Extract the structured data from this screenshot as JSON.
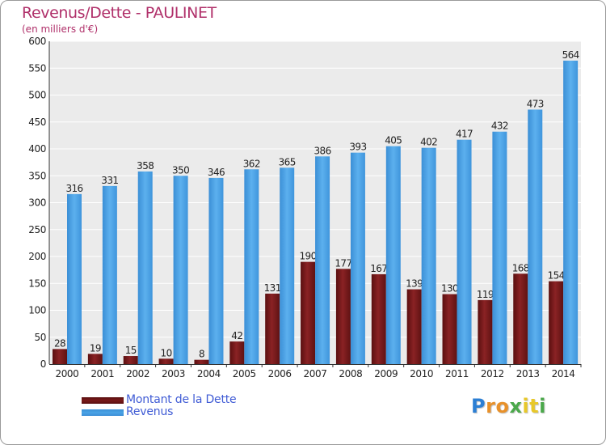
{
  "chart_data": {
    "type": "bar",
    "title": "Revenus/Dette - PAULINET",
    "subtitle": "(en milliers d'€)",
    "xlabel": "",
    "ylabel": "",
    "ylim": [
      0,
      600
    ],
    "y_ticks": [
      "0",
      "50",
      "100",
      "150",
      "200",
      "250",
      "300",
      "350",
      "400",
      "450",
      "500",
      "550",
      "600"
    ],
    "grid": true,
    "categories": [
      "2000",
      "2001",
      "2002",
      "2003",
      "2004",
      "2005",
      "2006",
      "2007",
      "2008",
      "2009",
      "2010",
      "2011",
      "2012",
      "2013",
      "2014"
    ],
    "series": [
      {
        "name": "Montant de la Dette",
        "color": "#7a1a1a",
        "values": [
          28,
          19,
          15,
          10,
          8,
          42,
          131,
          190,
          177,
          167,
          139,
          130,
          119,
          168,
          154
        ]
      },
      {
        "name": "Revenus",
        "color": "#4aa3e6",
        "values": [
          316,
          331,
          358,
          350,
          346,
          362,
          365,
          386,
          393,
          405,
          402,
          417,
          432,
          473,
          564
        ]
      }
    ],
    "legend": {
      "position": "bottom-left",
      "items": [
        "Montant de la Dette",
        "Revenus"
      ]
    }
  },
  "brand": {
    "logo_letters": [
      "P",
      "r",
      "o",
      "x",
      "i",
      "t",
      "i"
    ],
    "logo_colors": [
      "#2c7fd4",
      "#e8912a",
      "#e8912a",
      "#4aa84a",
      "#e8c82a",
      "#e8c82a",
      "#4aa84a"
    ]
  }
}
